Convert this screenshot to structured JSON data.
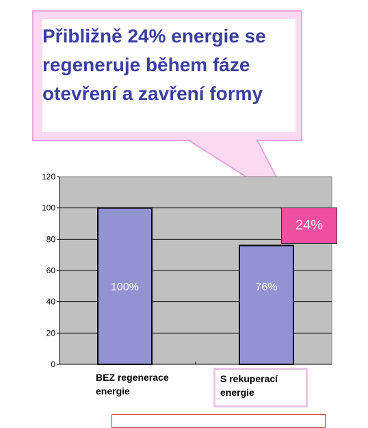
{
  "callout": {
    "text": "Přibližně 24% energie se regeneruje během fáze otevření a zavření formy",
    "fill": "#fbd9f1",
    "border": "#e9a6dc"
  },
  "badge": {
    "label": "24%",
    "color": "#ee4fa0"
  },
  "chart_data": {
    "type": "bar",
    "title": "",
    "xlabel": "",
    "ylabel": "",
    "categories": [
      "BEZ regenerace energie",
      "S rekuperací energie"
    ],
    "values": [
      100,
      76
    ],
    "data_labels": [
      "100%",
      "76%"
    ],
    "ylim": [
      0,
      120
    ],
    "yticks": [
      0,
      20,
      40,
      60,
      80,
      100,
      120
    ],
    "grid": true,
    "plot_background": "#c0c0c0",
    "bar_color": "#9393d3"
  }
}
